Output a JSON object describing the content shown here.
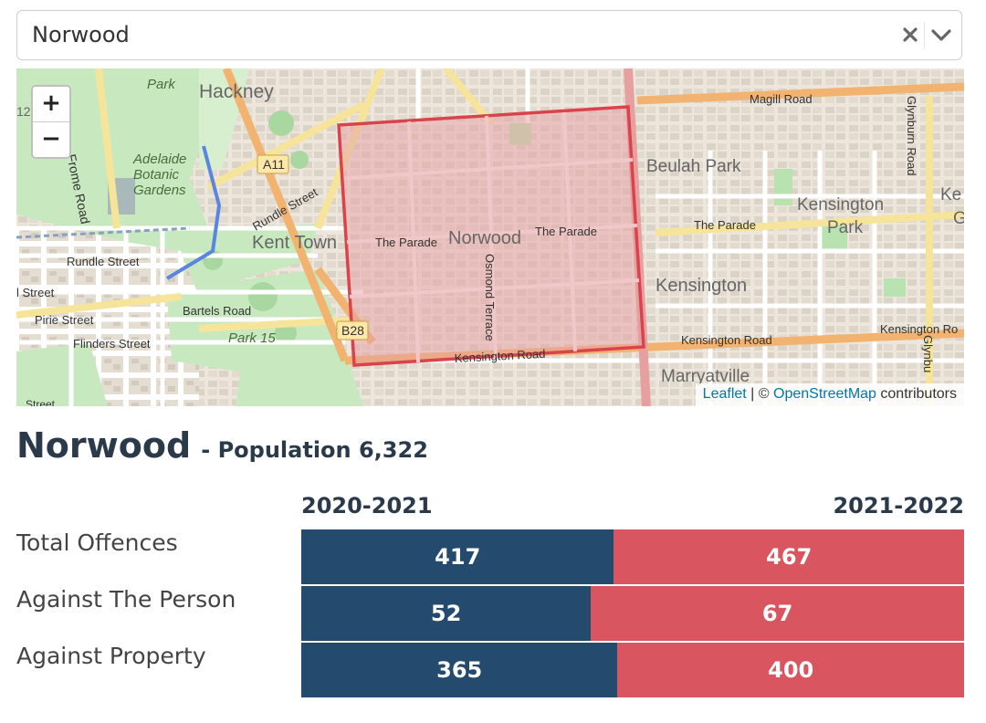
{
  "select": {
    "value": "Norwood"
  },
  "map": {
    "zoom_in": "+",
    "zoom_out": "−",
    "labels": {
      "park": "Park",
      "hackney": "Hackney",
      "adelaide": "Adelaide",
      "botanic": "Botanic",
      "gardens": "Gardens",
      "frome_road": "Frome Road",
      "a11": "A11",
      "rundle_st_diag": "Rundle Street",
      "kent_town": "Kent Town",
      "rundle_street": "Rundle Street",
      "l_street": "l Street",
      "pirie_street": "Pirie Street",
      "bartels_road": "Bartels Road",
      "flinders_street": "Flinders Street",
      "park_15": "Park 15",
      "b28": "B28",
      "the_parade_1": "The Parade",
      "norwood": "Norwood",
      "the_parade_2": "The Parade",
      "osmond_terrace": "Osmond Terrace",
      "kensington_road_1": "Kensington Road",
      "magill_road": "Magill Road",
      "beulah_park": "Beulah Park",
      "kensington_park_1": "Kensington",
      "kensington_park_2": "Park",
      "the_parade_3": "The Parade",
      "kensington": "Kensington",
      "kensington_road_2": "Kensington Road",
      "kensington_road_3": "Kensington Ro",
      "marryatville": "Marryatville",
      "glynburn_road": "Glynburn Road",
      "glynbu": "Glynbu",
      "ke": "Ke",
      "g": "G",
      "num_12": "12",
      "street_edge": "Street"
    },
    "attribution": {
      "leaflet": "Leaflet",
      "sep": " | © ",
      "osm": "OpenStreetMap",
      "contributors": " contributors"
    },
    "colors": {
      "polygon_stroke": "#d9444c",
      "polygon_fill": "#e8a0a4"
    }
  },
  "heading": {
    "suburb": "Norwood",
    "population": "- Population 6,322"
  },
  "stats": {
    "year_a": "2020-2021",
    "year_b": "2021-2022",
    "colors": {
      "year_a": "#244a6e",
      "year_b": "#d9555f"
    },
    "rows": [
      {
        "label": "Total Offences",
        "a": 417,
        "b": 467
      },
      {
        "label": "Against The Person",
        "a": 52,
        "b": 67
      },
      {
        "label": "Against Property",
        "a": 365,
        "b": 400
      }
    ]
  }
}
